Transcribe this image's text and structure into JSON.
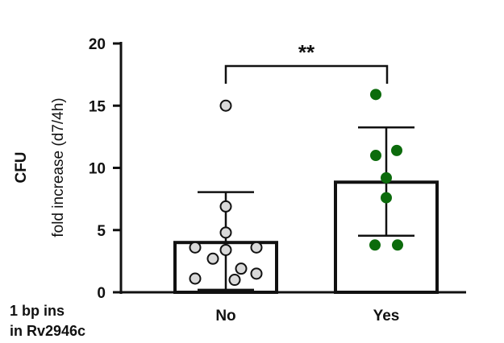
{
  "chart_data": {
    "type": "bar",
    "title": "",
    "ylabel_line1": "CFU",
    "ylabel_line2": "fold increase (d7/4h)",
    "xlabel_line1": "1 bp ins",
    "xlabel_line2": "in Rv2946c",
    "ylim": [
      0,
      20
    ],
    "yticks": [
      "0",
      "5",
      "10",
      "15",
      "20"
    ],
    "categories": [
      "No",
      "Yes"
    ],
    "values": [
      4.0,
      8.85
    ],
    "error_upper": [
      8.05,
      13.25
    ],
    "error_lower": [
      0.2,
      4.55
    ],
    "points": [
      [
        15.0,
        6.9,
        4.8,
        3.6,
        3.6,
        3.4,
        2.7,
        1.9,
        1.5,
        1.1,
        1.0
      ],
      [
        15.9,
        11.4,
        11.0,
        9.2,
        7.6,
        3.8,
        3.8
      ]
    ],
    "significance": "**",
    "point_colors": [
      "#d9d9d9",
      "#0c6b0c"
    ],
    "grid": false
  }
}
